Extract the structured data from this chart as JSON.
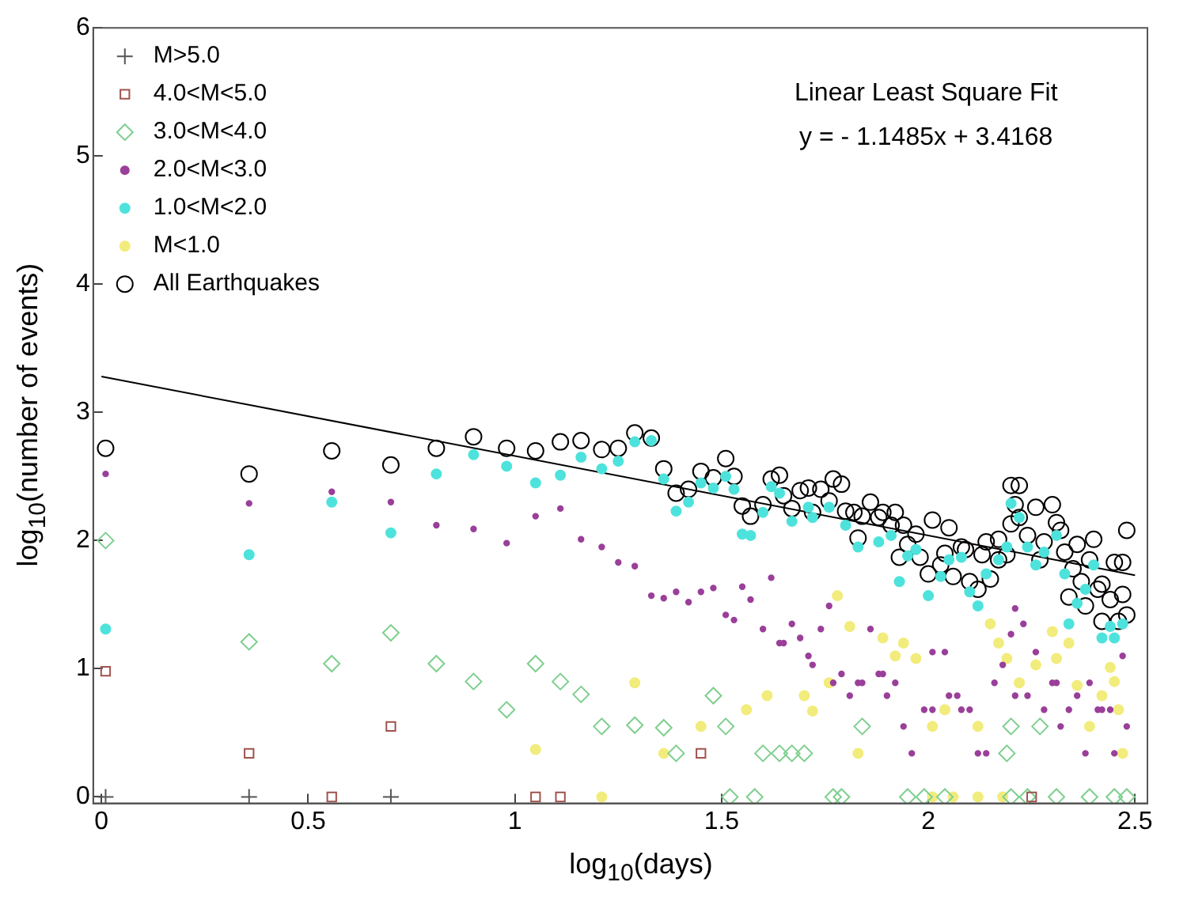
{
  "chart_data": {
    "type": "scatter",
    "xlabel": "log$_{10}$(days)",
    "ylabel": "log$_{10}$(number of events)",
    "xlim": [
      -0.02,
      2.53
    ],
    "ylim": [
      -0.05,
      6
    ],
    "xticks": [
      0,
      0.5,
      1,
      1.5,
      2,
      2.5
    ],
    "yticks": [
      0,
      1,
      2,
      3,
      4,
      5,
      6
    ],
    "grid": false,
    "legend": "top left",
    "annotations": [
      "Linear Least Square Fit",
      "y = - 1.1485x + 3.4168"
    ],
    "series": [
      {
        "name": "M>5.0",
        "color": "#555555",
        "marker": "cross",
        "x": [
          0.01,
          0.357,
          0.7
        ],
        "values": [
          0,
          0,
          0
        ]
      },
      {
        "name": "4.0<M<5.0",
        "color": "#a0524d",
        "marker": "square",
        "x": [
          0.01,
          0.357,
          0.557,
          0.7,
          1.05,
          1.11,
          1.45,
          2.25
        ],
        "values": [
          0.98,
          0.34,
          0,
          0.55,
          0,
          0,
          0.34,
          0
        ]
      },
      {
        "name": "3.0<M<4.0",
        "color": "#7fcf8f",
        "marker": "diamond",
        "x": [
          0.01,
          0.357,
          0.557,
          0.7,
          0.81,
          0.9,
          0.98,
          1.05,
          1.11,
          1.16,
          1.21,
          1.29,
          1.36,
          1.39,
          1.48,
          1.51,
          1.6,
          1.64,
          1.67,
          1.7,
          1.84,
          2.2,
          2.27,
          2.19,
          1.52,
          1.58,
          1.77,
          1.79,
          1.95,
          1.99,
          2.04,
          2.2,
          2.24,
          2.31,
          2.39,
          2.45,
          2.48
        ],
        "values": [
          2.0,
          1.21,
          1.04,
          1.28,
          1.04,
          0.9,
          0.68,
          1.04,
          0.9,
          0.8,
          0.55,
          0.56,
          0.54,
          0.34,
          0.79,
          0.55,
          0.34,
          0.34,
          0.34,
          0.34,
          0.55,
          0.55,
          0.55,
          0.34,
          0,
          0,
          0,
          0,
          0,
          0,
          0,
          0,
          0,
          0,
          0,
          0,
          0
        ]
      },
      {
        "name": "2.0<M<3.0",
        "color": "#9a3f9a",
        "marker": "circle",
        "x": [
          0.01,
          0.357,
          0.557,
          0.7,
          0.81,
          0.9,
          0.98,
          1.05,
          1.11,
          1.16,
          1.21,
          1.25,
          1.29,
          1.33,
          1.36,
          1.39,
          1.42,
          1.45,
          1.48,
          1.51,
          1.53,
          1.55,
          1.57,
          1.6,
          1.62,
          1.64,
          1.65,
          1.67,
          1.69,
          1.71,
          1.72,
          1.74,
          1.76,
          1.77,
          1.79,
          1.81,
          1.83,
          1.84,
          1.86,
          1.88,
          1.89,
          1.9,
          1.92,
          1.94,
          1.96,
          1.99,
          2.01,
          2.01,
          2.04,
          2.05,
          2.07,
          2.08,
          2.1,
          2.12,
          2.14,
          2.16,
          2.18,
          2.2,
          2.21,
          2.21,
          2.23,
          2.24,
          2.26,
          2.28,
          2.3,
          2.31,
          2.32,
          2.34,
          2.36,
          2.38,
          2.39,
          2.41,
          2.42,
          2.44,
          2.45,
          2.47,
          2.48
        ],
        "values": [
          2.52,
          2.29,
          2.38,
          2.3,
          2.12,
          2.09,
          1.98,
          2.19,
          2.25,
          2.01,
          1.95,
          1.83,
          1.8,
          1.57,
          1.55,
          1.6,
          1.52,
          1.6,
          1.63,
          1.42,
          1.38,
          1.64,
          1.54,
          1.31,
          1.71,
          1.2,
          1.2,
          1.35,
          1.24,
          1.1,
          1.03,
          1.31,
          1.49,
          0.89,
          0.96,
          0.79,
          0.89,
          0.89,
          1.31,
          0.96,
          0.96,
          0.79,
          0.89,
          0.55,
          0.34,
          0.68,
          1.13,
          0.68,
          1.13,
          0.79,
          0.79,
          0.68,
          0.68,
          0.34,
          0.34,
          0.89,
          1.03,
          1.27,
          0.79,
          1.47,
          1.35,
          0.79,
          1.13,
          0.68,
          0.89,
          0.89,
          0.55,
          0.68,
          0.79,
          0.34,
          0.89,
          0.68,
          0.68,
          0.68,
          0.34,
          1.1,
          0.55
        ]
      },
      {
        "name": "1.0<M<2.0",
        "color": "#4de3dc",
        "marker": "circle",
        "x": [
          0.01,
          0.357,
          0.557,
          0.7,
          0.81,
          0.9,
          0.98,
          1.05,
          1.11,
          1.16,
          1.21,
          1.25,
          1.29,
          1.33,
          1.36,
          1.39,
          1.42,
          1.45,
          1.48,
          1.51,
          1.53,
          1.55,
          1.57,
          1.6,
          1.62,
          1.64,
          1.67,
          1.71,
          1.72,
          1.76,
          1.8,
          1.83,
          1.88,
          1.91,
          1.93,
          1.95,
          1.97,
          2.0,
          2.03,
          2.05,
          2.08,
          2.1,
          2.12,
          2.14,
          2.17,
          2.19,
          2.2,
          2.22,
          2.24,
          2.26,
          2.28,
          2.31,
          2.33,
          2.34,
          2.36,
          2.38,
          2.4,
          2.42,
          2.44,
          2.45,
          2.47
        ],
        "values": [
          1.31,
          1.89,
          2.3,
          2.06,
          2.52,
          2.67,
          2.58,
          2.45,
          2.51,
          2.65,
          2.56,
          2.62,
          2.77,
          2.78,
          2.48,
          2.23,
          2.3,
          2.45,
          2.41,
          2.5,
          2.4,
          2.05,
          2.04,
          2.22,
          2.42,
          2.37,
          2.15,
          2.26,
          2.18,
          2.26,
          2.12,
          1.95,
          1.99,
          2.04,
          1.68,
          1.88,
          1.93,
          1.57,
          1.72,
          1.85,
          1.87,
          1.6,
          1.49,
          1.74,
          1.85,
          1.95,
          2.29,
          2.18,
          1.95,
          1.81,
          1.91,
          2.04,
          1.74,
          1.35,
          1.51,
          1.62,
          1.81,
          1.24,
          1.33,
          1.24,
          1.35
        ]
      },
      {
        "name": "M<1.0",
        "color": "#f2ec7c",
        "marker": "circle",
        "x": [
          1.05,
          1.21,
          1.29,
          1.36,
          1.45,
          1.56,
          1.61,
          1.7,
          1.72,
          1.76,
          1.78,
          1.81,
          1.83,
          1.89,
          1.92,
          1.94,
          1.97,
          2.01,
          2.01,
          2.04,
          2.06,
          2.12,
          2.15,
          2.17,
          2.19,
          2.22,
          2.26,
          2.3,
          2.31,
          2.34,
          2.36,
          2.39,
          2.42,
          2.44,
          2.45,
          2.46,
          2.47,
          2.12,
          2.18
        ],
        "values": [
          0.37,
          0,
          0.89,
          0.34,
          0.55,
          0.68,
          0.79,
          0.79,
          0.67,
          0.89,
          1.57,
          1.33,
          0.34,
          1.24,
          1.1,
          1.2,
          1.08,
          0.55,
          0,
          0.68,
          0,
          0.55,
          1.35,
          1.2,
          1.08,
          0.89,
          1.03,
          1.29,
          1.08,
          1.2,
          0.87,
          0.55,
          0.79,
          1.01,
          0.9,
          0.68,
          0.34,
          0,
          0
        ]
      },
      {
        "name": "All Earthquakes",
        "color": "#000000",
        "marker": "circle",
        "x": [
          0.01,
          0.357,
          0.557,
          0.7,
          0.81,
          0.9,
          0.98,
          1.05,
          1.11,
          1.16,
          1.21,
          1.25,
          1.29,
          1.33,
          1.36,
          1.39,
          1.42,
          1.45,
          1.48,
          1.51,
          1.53,
          1.55,
          1.57,
          1.6,
          1.62,
          1.64,
          1.65,
          1.67,
          1.69,
          1.71,
          1.72,
          1.74,
          1.76,
          1.77,
          1.79,
          1.8,
          1.82,
          1.83,
          1.84,
          1.86,
          1.88,
          1.89,
          1.91,
          1.92,
          1.93,
          1.94,
          1.95,
          1.97,
          1.98,
          2.0,
          2.01,
          2.03,
          2.04,
          2.05,
          2.06,
          2.08,
          2.09,
          2.1,
          2.12,
          2.13,
          2.14,
          2.15,
          2.17,
          2.17,
          2.19,
          2.2,
          2.2,
          2.21,
          2.22,
          2.22,
          2.24,
          2.26,
          2.27,
          2.28,
          2.3,
          2.31,
          2.32,
          2.33,
          2.34,
          2.35,
          2.36,
          2.37,
          2.38,
          2.39,
          2.4,
          2.41,
          2.42,
          2.42,
          2.44,
          2.45,
          2.46,
          2.47,
          2.47,
          2.48,
          2.48
        ],
        "values": [
          2.72,
          2.52,
          2.7,
          2.59,
          2.72,
          2.81,
          2.72,
          2.7,
          2.77,
          2.78,
          2.71,
          2.72,
          2.84,
          2.8,
          2.56,
          2.37,
          2.4,
          2.54,
          2.49,
          2.64,
          2.5,
          2.27,
          2.19,
          2.28,
          2.48,
          2.51,
          2.35,
          2.25,
          2.39,
          2.41,
          2.22,
          2.4,
          2.31,
          2.48,
          2.44,
          2.23,
          2.22,
          2.02,
          2.19,
          2.3,
          2.18,
          2.22,
          2.12,
          2.22,
          1.87,
          2.12,
          1.97,
          2.05,
          1.87,
          1.74,
          2.16,
          1.81,
          1.9,
          2.1,
          1.72,
          1.95,
          1.93,
          1.68,
          1.62,
          1.89,
          1.99,
          1.7,
          2.01,
          1.85,
          1.89,
          2.13,
          2.43,
          2.28,
          2.43,
          2.18,
          2.04,
          2.26,
          1.85,
          1.99,
          2.28,
          2.14,
          2.08,
          1.91,
          1.56,
          1.78,
          1.97,
          1.68,
          1.49,
          1.85,
          2.01,
          1.62,
          1.37,
          1.66,
          1.54,
          1.83,
          1.37,
          1.58,
          1.83,
          2.08,
          1.42
        ]
      },
      {
        "type": "line",
        "color": "#000000",
        "marker": "none",
        "x": [
          0,
          2.5
        ],
        "values": [
          3.28,
          1.73
        ]
      }
    ]
  }
}
